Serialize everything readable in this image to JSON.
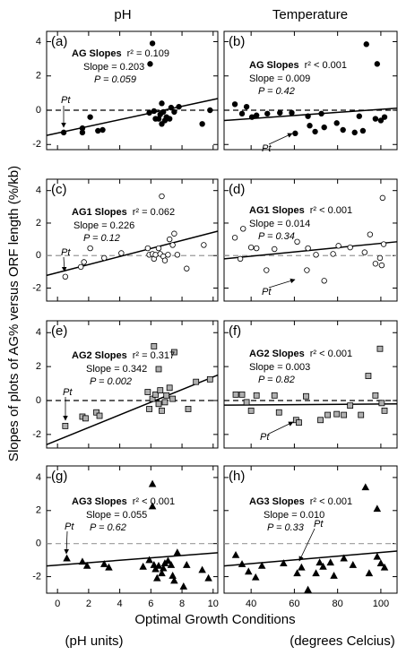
{
  "figure": {
    "column_titles": [
      "pH",
      "Temperature"
    ],
    "ylabel": "Slopes of plots of AG% versus ORF length (%/kb)",
    "xlabel": "Optimal Growth Conditions",
    "x_units": [
      "(pH units)",
      "(degrees Celcius)"
    ]
  },
  "chart_data": [
    {
      "type": "scatter",
      "panel_label": "(a)",
      "fit_name": "AG Slopes",
      "r2": "r² = 0.109",
      "slope": "Slope = 0.203",
      "p": "P = 0.059",
      "annotation": "Pt",
      "marker": "circle",
      "color": "#000000",
      "stroke": "#000000",
      "hline": 0,
      "hline_color": "#000000",
      "x": [
        0.4,
        1.6,
        1.6,
        2.1,
        2.6,
        2.9,
        5.9,
        6.2,
        6.3,
        6.5,
        6.6,
        6.7,
        6.8,
        6.9,
        7.0,
        7.2,
        7.3,
        7.5,
        7.8,
        6.1,
        5.95,
        6.7,
        9.3,
        9.8
      ],
      "values": [
        -1.3,
        -1.3,
        -1.05,
        -0.4,
        -1.2,
        -1.15,
        -0.15,
        -0.05,
        -0.5,
        -0.5,
        -0.25,
        -0.8,
        -0.1,
        -0.6,
        -0.4,
        -0.5,
        0.15,
        -0.1,
        0.2,
        3.9,
        2.7,
        0.4,
        -0.8,
        0
      ],
      "fit": {
        "x": [
          -0.7,
          10.3
        ],
        "values": [
          -1.47,
          0.68
        ]
      },
      "xlim": [
        -0.7,
        10.3
      ],
      "xticks": [
        0,
        2,
        4,
        6,
        8,
        10
      ],
      "ylim": [
        -2.3,
        4.6
      ],
      "yticks": [
        -2,
        0,
        2,
        4
      ]
    },
    {
      "type": "scatter",
      "panel_label": "(b)",
      "fit_name": "AG Slopes",
      "r2": "r² < 0.001",
      "slope": "Slope = 0.009",
      "p": "P = 0.42",
      "annotation": "Pt",
      "marker": "circle",
      "color": "#000000",
      "stroke": "#000000",
      "hline": 0,
      "hline_color": "#000000",
      "x": [
        32.5,
        35.8,
        37.9,
        40.4,
        42.5,
        47.5,
        53.3,
        58.8,
        60.4,
        66.3,
        67.1,
        69.6,
        72.5,
        73.8,
        79.6,
        82.5,
        87.9,
        90,
        93.3,
        98.3,
        97.5,
        100,
        101.7,
        91.7
      ],
      "values": [
        0.35,
        -0.2,
        0.2,
        -0.4,
        -0.3,
        -0.2,
        -0.15,
        -0.15,
        -1.35,
        -0.35,
        -0.9,
        -1.25,
        -0.2,
        -1,
        -0.75,
        -1.15,
        -1.3,
        -0.35,
        3.85,
        2.7,
        -0.5,
        -0.6,
        -0.4,
        -1.2
      ],
      "fit": {
        "x": [
          27.5,
          107.5
        ],
        "values": [
          -0.6,
          0.12
        ]
      },
      "xlim": [
        27.5,
        107.5
      ],
      "xticks": [
        40,
        60,
        80,
        100
      ],
      "ylim": [
        -2.3,
        4.6
      ],
      "yticks": [
        -2,
        0,
        2,
        4
      ]
    },
    {
      "type": "scatter",
      "panel_label": "(c)",
      "fit_name": "AG1 Slopes",
      "r2": "r² = 0.062",
      "slope": "Slope = 0.226",
      "p": "P = 0.12",
      "annotation": "Pt",
      "marker": "circle",
      "color": "#ffffff",
      "stroke": "#000000",
      "hline": 0,
      "hline_color": "#999999",
      "x": [
        0.5,
        1.5,
        1.7,
        2.1,
        3.0,
        4.1,
        5.8,
        5.9,
        6.1,
        6.2,
        6.3,
        6.5,
        6.6,
        6.8,
        6.9,
        7.1,
        7.2,
        7.4,
        7.5,
        7.7,
        6.7,
        8.3,
        9.4
      ],
      "values": [
        -1.3,
        -0.7,
        -0.4,
        0.45,
        -0.15,
        0.15,
        0.45,
        0.05,
        0.1,
        -0.2,
        0.05,
        0.45,
        0.1,
        -0.05,
        -0.3,
        0.05,
        1.0,
        0.65,
        1.35,
        0.05,
        3.65,
        -0.8,
        0.65
      ],
      "fit": {
        "x": [
          -0.7,
          10.3
        ],
        "values": [
          -1.22,
          1.5
        ]
      },
      "xlim": [
        -0.7,
        10.3
      ],
      "xticks": [
        0,
        2,
        4,
        6,
        8,
        10
      ],
      "ylim": [
        -2.8,
        4.7
      ],
      "yticks": [
        -2,
        0,
        2,
        4
      ]
    },
    {
      "type": "scatter",
      "panel_label": "(d)",
      "fit_name": "AG1 Slopes",
      "r2": "r² < 0.001",
      "slope": "Slope = 0.014",
      "p": "P = 0.34",
      "annotation": "Pt",
      "marker": "circle",
      "color": "#ffffff",
      "stroke": "#000000",
      "hline": 0,
      "hline_color": "#999999",
      "x": [
        32.5,
        36.3,
        35,
        40,
        42.5,
        47.1,
        50.8,
        61.3,
        66.3,
        70,
        73.8,
        77.9,
        80.4,
        85.8,
        92.5,
        95,
        97.5,
        99.6,
        100.4,
        100.8,
        101.3,
        65.8
      ],
      "values": [
        1.1,
        1.65,
        -0.2,
        0.5,
        0.45,
        -0.9,
        0.4,
        0.85,
        0.45,
        0.05,
        -1.55,
        0.1,
        0.6,
        0.5,
        0.2,
        1.3,
        -0.5,
        -0.15,
        -0.6,
        3.55,
        0.7,
        -0.9
      ],
      "fit": {
        "x": [
          27.5,
          107.5
        ],
        "values": [
          -0.2,
          0.85
        ]
      },
      "xlim": [
        27.5,
        107.5
      ],
      "xticks": [
        40,
        60,
        80,
        100
      ],
      "ylim": [
        -2.8,
        4.7
      ],
      "yticks": [
        -2,
        0,
        2,
        4
      ]
    },
    {
      "type": "scatter",
      "panel_label": "(e)",
      "fit_name": "AG2 Slopes",
      "r2": "r² = 0.317",
      "slope": "Slope = 0.342",
      "p": "P = 0.002",
      "annotation": "Pt",
      "marker": "square",
      "color": "#b0b0b0",
      "stroke": "#000000",
      "hline": 0,
      "hline_color": "#000000",
      "x": [
        0.5,
        1.6,
        1.8,
        2.5,
        2.7,
        5.8,
        5.9,
        6.1,
        6.3,
        6.5,
        6.6,
        6.7,
        6.9,
        7.0,
        7.2,
        7.4,
        6.5,
        6.2,
        7.5,
        8.9,
        8.4,
        9.8
      ],
      "values": [
        -1.5,
        -0.95,
        -1.05,
        -0.7,
        -0.9,
        0.5,
        -0.5,
        0.1,
        0.35,
        -0.2,
        0.6,
        -0.6,
        -0.1,
        0.3,
        0.75,
        0.1,
        1.85,
        3.2,
        2.85,
        1.1,
        -0.5,
        1.25
      ],
      "fit": {
        "x": [
          -0.7,
          10.3
        ],
        "values": [
          -2.6,
          1.5
        ]
      },
      "xlim": [
        -0.7,
        10.3
      ],
      "xticks": [
        0,
        2,
        4,
        6,
        8,
        10
      ],
      "ylim": [
        -2.8,
        4.7
      ],
      "yticks": [
        -2,
        0,
        2,
        4
      ]
    },
    {
      "type": "scatter",
      "panel_label": "(f)",
      "fit_name": "AG2 Slopes",
      "r2": "r² < 0.001",
      "slope": "Slope = 0.003",
      "p": "P = 0.82",
      "annotation": "Pt",
      "marker": "square",
      "color": "#b0b0b0",
      "stroke": "#000000",
      "hline": 0,
      "hline_color": "#000000",
      "x": [
        32.9,
        35.8,
        37.9,
        40,
        42.5,
        50.8,
        52.9,
        60.8,
        62.1,
        65.4,
        72.1,
        75.4,
        79.6,
        82.9,
        85.8,
        90.8,
        94.2,
        99.6,
        97.5,
        100.4,
        101.7
      ],
      "values": [
        0.35,
        0.35,
        -0.1,
        -0.6,
        0.3,
        0.3,
        -0.7,
        -1.15,
        -1.3,
        0.25,
        -1.15,
        -0.85,
        -0.8,
        -0.85,
        -0.3,
        -0.85,
        1.45,
        3.05,
        0.3,
        -0.15,
        -0.6
      ],
      "fit": {
        "x": [
          27.5,
          107.5
        ],
        "values": [
          -0.27,
          -0.2
        ]
      },
      "xlim": [
        27.5,
        107.5
      ],
      "xticks": [
        40,
        60,
        80,
        100
      ],
      "ylim": [
        -2.8,
        4.7
      ],
      "yticks": [
        -2,
        0,
        2,
        4
      ]
    },
    {
      "type": "scatter",
      "panel_label": "(g)",
      "fit_name": "AG3 Slopes",
      "r2": "r² < 0.001",
      "slope": "Slope = 0.055",
      "p": "P = 0.62",
      "annotation": "Pt",
      "marker": "triangle",
      "color": "#000000",
      "stroke": "#000000",
      "hline": 0,
      "hline_color": "#999999",
      "x": [
        0.6,
        1.6,
        1.9,
        3.0,
        3.3,
        5.5,
        5.9,
        6.2,
        6.3,
        6.4,
        6.5,
        6.7,
        6.8,
        6.9,
        7.1,
        7.3,
        7.4,
        7.5,
        7.7,
        6.1,
        6.1,
        8.3,
        9.3,
        9.7,
        8.1
      ],
      "values": [
        -0.9,
        -1.1,
        -1.35,
        -1.25,
        -1.45,
        -1.4,
        -1.0,
        -1.3,
        -1.55,
        -2.1,
        -1.35,
        -1.8,
        -1.5,
        -1.2,
        -1.05,
        -1.3,
        -1.95,
        -2.25,
        -0.55,
        3.6,
        2.25,
        -1.3,
        -1.6,
        -2.1,
        -2.6
      ],
      "fit": {
        "x": [
          -0.7,
          10.3
        ],
        "values": [
          -1.35,
          -0.55
        ]
      },
      "xlim": [
        -0.7,
        10.3
      ],
      "xticks": [
        0,
        2,
        4,
        6,
        8,
        10
      ],
      "ylim": [
        -3,
        4.7
      ],
      "yticks": [
        -2,
        0,
        2,
        4
      ]
    },
    {
      "type": "scatter",
      "panel_label": "(h)",
      "fit_name": "AG3 Slopes",
      "r2": "r² < 0.001",
      "slope": "Slope = 0.010",
      "p": "P = 0.33",
      "annotation": "Pt",
      "marker": "triangle",
      "color": "#000000",
      "stroke": "#000000",
      "hline": 0,
      "hline_color": "#999999",
      "x": [
        32.9,
        35.8,
        38.8,
        42.1,
        45,
        55,
        61.3,
        63.3,
        66.3,
        70,
        71.7,
        73.3,
        76.7,
        78.3,
        82.9,
        87.1,
        92.9,
        98.3,
        94.6,
        98.3,
        100,
        101.7
      ],
      "values": [
        -0.7,
        -1.25,
        -1.7,
        -2.05,
        -1.35,
        -1.2,
        -1.8,
        -1.45,
        -2.8,
        -1.8,
        -1.15,
        -1.4,
        -1.15,
        -1.95,
        -0.9,
        -1.3,
        3.4,
        2.1,
        -1.8,
        -0.8,
        -1.2,
        -1.45
      ],
      "fit": {
        "x": [
          27.5,
          107.5
        ],
        "values": [
          -1.35,
          -0.45
        ]
      },
      "xlim": [
        27.5,
        107.5
      ],
      "xticks": [
        40,
        60,
        80,
        100
      ],
      "ylim": [
        -3,
        4.7
      ],
      "yticks": [
        -2,
        0,
        2,
        4
      ]
    }
  ]
}
